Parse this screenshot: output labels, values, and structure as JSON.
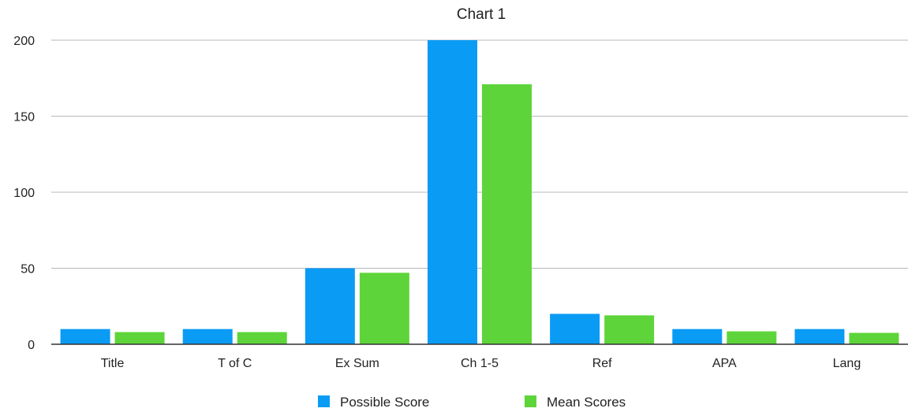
{
  "chart_data": {
    "type": "bar",
    "title": "Chart 1",
    "xlabel": "",
    "ylabel": "",
    "categories": [
      "Title",
      "T of C",
      "Ex Sum",
      "Ch 1-5",
      "Ref",
      "APA",
      "Lang"
    ],
    "series": [
      {
        "name": "Possible Score",
        "color": "#0a9bf5",
        "values": [
          10,
          10,
          50,
          200,
          20,
          10,
          10
        ]
      },
      {
        "name": "Mean Scores",
        "color": "#5dd53a",
        "values": [
          8,
          8,
          47,
          171,
          19,
          8.5,
          7.5
        ]
      }
    ],
    "ylim": [
      0,
      200
    ],
    "yticks": [
      0,
      50,
      100,
      150,
      200
    ],
    "grid": true,
    "legend": "bottom-center"
  }
}
